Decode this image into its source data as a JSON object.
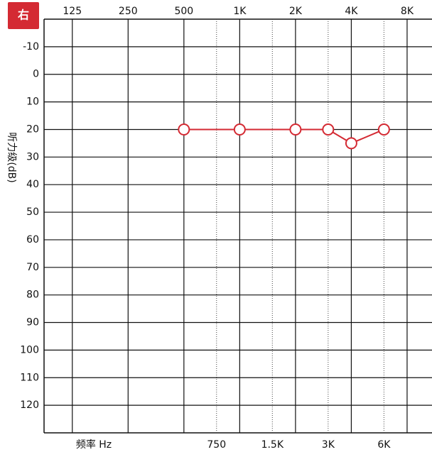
{
  "chart_data": {
    "type": "line",
    "title": "右",
    "y_label": "听力级(dB)",
    "x_label": "频率 Hz",
    "x": [
      500,
      1000,
      2000,
      3000,
      4000,
      6000
    ],
    "values": [
      20,
      20,
      20,
      20,
      25,
      20
    ],
    "color": "#d42a33",
    "xscale": "log",
    "xlim": [
      88,
      10900
    ],
    "xticks": [
      125,
      250,
      500,
      {
        "value": 1000,
        "label": "1K"
      },
      {
        "value": 2000,
        "label": "2K"
      },
      {
        "value": 4000,
        "label": "4K"
      },
      {
        "value": 8000,
        "label": "8K"
      }
    ],
    "xticks_mid": [
      750,
      {
        "value": 1500,
        "label": "1.5K"
      },
      {
        "value": 3000,
        "label": "3K"
      },
      {
        "value": 6000,
        "label": "6K"
      }
    ],
    "ylim": [
      130,
      -20
    ],
    "yticks": [
      -10,
      0,
      10,
      20,
      30,
      40,
      50,
      60,
      70,
      80,
      90,
      100,
      110,
      120
    ],
    "grid": true
  }
}
